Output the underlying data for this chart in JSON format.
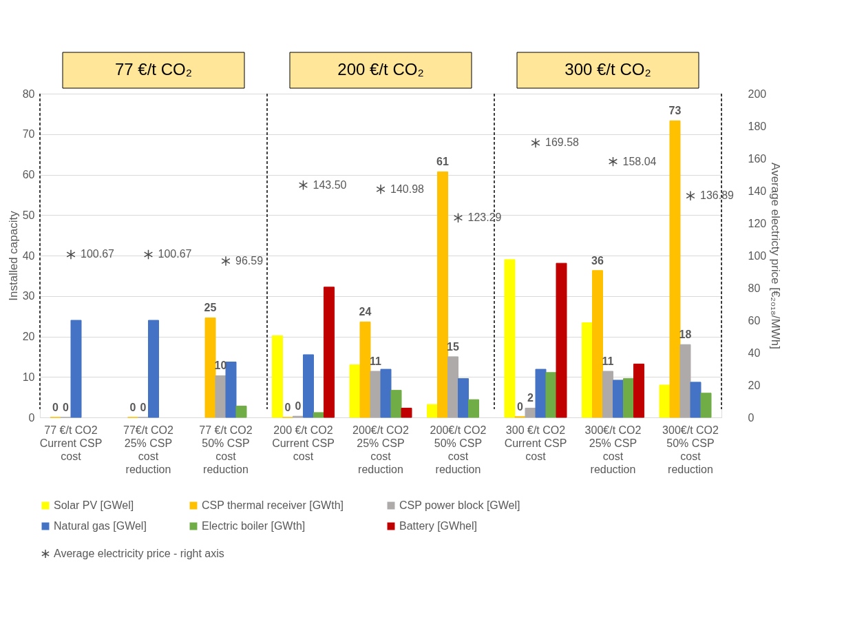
{
  "chart_data": {
    "type": "bar",
    "ylabel": "Installed capacity",
    "y2label": "Average electricty price [€₂₀₁₈/MWh]",
    "categories": [
      "77 €/t CO2 Current CSP cost",
      "77€/t CO2 25% CSP cost reduction",
      "77 €/t CO2 50% CSP cost reduction",
      "200 €/t CO2 Current CSP cost",
      "200€/t CO2 25% CSP cost reduction",
      "200€/t CO2 50% CSP cost reduction",
      "300 €/t CO2 Current CSP cost",
      "300€/t CO2 25% CSP cost reduction",
      "300€/t CO2 50% CSP cost reduction"
    ],
    "series": [
      {
        "name": "Solar PV [GWel]",
        "color": "#ffff00",
        "values": [
          null,
          null,
          null,
          20.2,
          13,
          3.2,
          39,
          23.4,
          8
        ]
      },
      {
        "name": "CSP thermal receiver [GWth]",
        "color": "#ffc000",
        "values": [
          0,
          0,
          24.6,
          0,
          23.6,
          60.7,
          0.2,
          36.3,
          73.3
        ],
        "value_labels": [
          "0",
          "0",
          "25",
          "0",
          "24",
          "61",
          "0",
          "36",
          "73"
        ]
      },
      {
        "name": "CSP power block [GWel]",
        "color": "#aeaaaa",
        "values": [
          0,
          0,
          10.3,
          0.3,
          11.4,
          15,
          2.3,
          11.4,
          18
        ],
        "value_labels": [
          "0",
          "0",
          "10",
          "0",
          "11",
          "15",
          "2",
          "11",
          "18"
        ]
      },
      {
        "name": "Natural gas [GWel]",
        "color": "#4472c4",
        "values": [
          24,
          24,
          13.7,
          15.5,
          11.9,
          9.6,
          11.9,
          9.2,
          8.7
        ]
      },
      {
        "name": "Electric boiler [GWth]",
        "color": "#70ad47",
        "values": [
          null,
          null,
          2.8,
          1.2,
          6.7,
          4.4,
          11.1,
          9.6,
          6
        ]
      },
      {
        "name": "Battery [GWhel]",
        "color": "#c00000",
        "values": [
          null,
          null,
          null,
          32.2,
          2.3,
          null,
          38.1,
          13.2,
          null
        ]
      },
      {
        "name": "Average electricity price - right axis",
        "type": "scatter",
        "axis": "y2",
        "marker": "cross",
        "color": "#000000",
        "values": [
          100.67,
          100.67,
          96.59,
          143.5,
          140.98,
          123.29,
          169.58,
          158.04,
          136.89
        ],
        "value_labels": [
          "100.67",
          "100.67",
          "96.59",
          "143.50",
          "140.98",
          "123.29",
          "169.58",
          "158.04",
          "136.89"
        ]
      }
    ],
    "ylim": [
      0,
      80
    ],
    "yticks": [
      0,
      10,
      20,
      30,
      40,
      50,
      60,
      70,
      80
    ],
    "y2lim": [
      0,
      200
    ],
    "y2ticks": [
      0,
      20,
      40,
      60,
      80,
      100,
      120,
      140,
      160,
      180,
      200
    ],
    "grid": "y",
    "legend": "bottom",
    "annotations": [
      "77 €/t CO₂",
      "200 €/t CO₂",
      "300 €/t CO₂"
    ]
  }
}
